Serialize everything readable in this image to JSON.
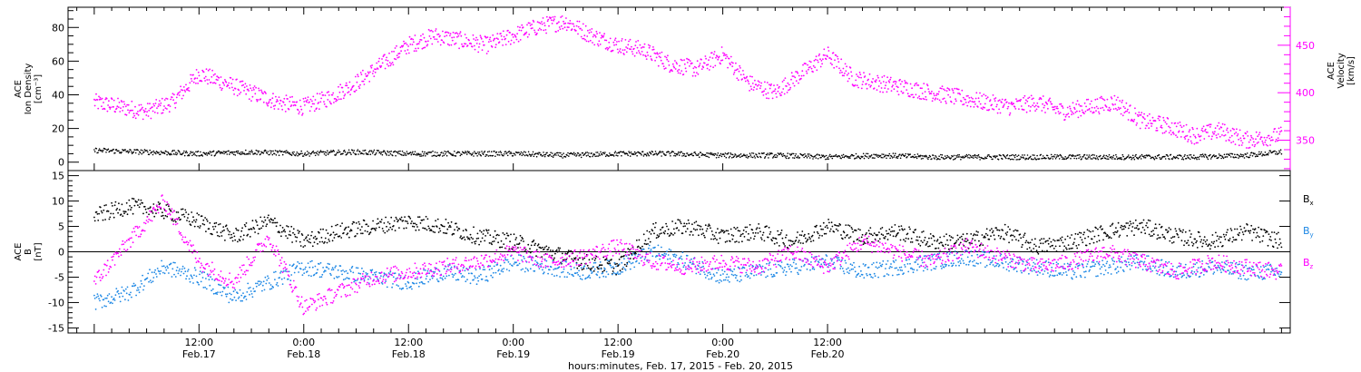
{
  "chart_data": [
    {
      "type": "scatter",
      "panel": "plasma",
      "ylabel_left_lines": [
        "ACE",
        "Ion Density",
        "[cm⁻³]"
      ],
      "ylabel_right_lines": [
        "ACE",
        "Velocity",
        "[km/s]"
      ],
      "ylim_left": [
        -5,
        92
      ],
      "ylim_right": [
        318,
        490
      ],
      "left_ticks": [
        0,
        20,
        40,
        60,
        80
      ],
      "right_ticks": [
        350,
        400,
        450
      ],
      "colors": {
        "density": "#000000",
        "velocity": "#ff00ff"
      },
      "series": [
        {
          "axis": "left",
          "color": "#000000",
          "t": [
            0,
            6,
            12,
            18,
            24,
            30,
            36,
            42,
            48,
            54,
            60,
            66,
            72,
            78,
            84,
            90,
            96,
            102,
            108,
            114,
            120,
            126,
            132,
            136
          ],
          "values": [
            7,
            6,
            5,
            6,
            5,
            6,
            5,
            5,
            5,
            4,
            5,
            5,
            4,
            4,
            3,
            4,
            3,
            3,
            3,
            3,
            3,
            3,
            4,
            6
          ]
        },
        {
          "axis": "right",
          "color": "#ff00ff",
          "t": [
            0,
            3,
            6,
            9,
            12,
            15,
            18,
            21,
            24,
            27,
            30,
            33,
            36,
            39,
            42,
            45,
            48,
            51,
            54,
            57,
            60,
            63,
            66,
            69,
            72,
            75,
            78,
            81,
            84,
            87,
            90,
            93,
            96,
            99,
            102,
            105,
            108,
            111,
            114,
            117,
            120,
            123,
            126,
            129,
            132,
            136
          ],
          "values": [
            390,
            385,
            380,
            390,
            420,
            410,
            400,
            390,
            385,
            395,
            410,
            430,
            450,
            460,
            455,
            450,
            460,
            470,
            475,
            460,
            450,
            445,
            430,
            425,
            440,
            410,
            400,
            420,
            440,
            415,
            410,
            405,
            400,
            395,
            390,
            385,
            390,
            380,
            385,
            390,
            370,
            365,
            355,
            360,
            350,
            355
          ]
        }
      ]
    },
    {
      "type": "scatter",
      "panel": "magnetic-field",
      "ylabel_left_lines": [
        "ACE",
        "B",
        "[nT]"
      ],
      "ylim": [
        -16,
        16
      ],
      "ticks": [
        -15,
        -10,
        -5,
        0,
        5,
        10,
        15
      ],
      "zero_line": true,
      "series": [
        {
          "name": "Bx",
          "label": "B",
          "sub": "x",
          "color": "#000000",
          "t": [
            0,
            4,
            8,
            12,
            16,
            20,
            24,
            28,
            32,
            36,
            40,
            44,
            48,
            52,
            56,
            60,
            64,
            68,
            72,
            76,
            80,
            84,
            88,
            92,
            96,
            100,
            104,
            108,
            112,
            116,
            120,
            124,
            128,
            132,
            136
          ],
          "values": [
            7,
            9,
            8,
            6,
            3,
            6,
            2,
            4,
            5,
            6,
            5,
            3,
            2,
            0,
            -2,
            -3,
            4,
            5,
            3,
            4,
            2,
            5,
            3,
            4,
            2,
            2,
            4,
            1,
            2,
            4,
            5,
            3,
            2,
            4,
            2
          ]
        },
        {
          "name": "By",
          "label": "B",
          "sub": "y",
          "color": "#1e88e5",
          "t": [
            0,
            4,
            8,
            12,
            16,
            20,
            24,
            28,
            32,
            36,
            40,
            44,
            48,
            52,
            56,
            60,
            64,
            68,
            72,
            76,
            80,
            84,
            88,
            92,
            96,
            100,
            104,
            108,
            112,
            116,
            120,
            124,
            128,
            132,
            136
          ],
          "values": [
            -10,
            -8,
            -3,
            -5,
            -9,
            -6,
            -3,
            -4,
            -5,
            -6,
            -4,
            -5,
            -2,
            -3,
            -4,
            -3,
            0,
            -2,
            -5,
            -4,
            -3,
            -2,
            -4,
            -3,
            -2,
            -1,
            -2,
            -3,
            -4,
            -3,
            -2,
            -4,
            -3,
            -4,
            -4
          ]
        },
        {
          "name": "Bz",
          "label": "B",
          "sub": "z",
          "color": "#ff00ff",
          "t": [
            0,
            4,
            8,
            12,
            16,
            20,
            24,
            28,
            32,
            36,
            40,
            44,
            48,
            52,
            56,
            60,
            64,
            68,
            72,
            76,
            80,
            84,
            88,
            92,
            96,
            100,
            104,
            108,
            112,
            116,
            120,
            124,
            128,
            132,
            136
          ],
          "values": [
            -6,
            2,
            10,
            -2,
            -6,
            3,
            -11,
            -8,
            -5,
            -4,
            -3,
            -2,
            0,
            -2,
            -1,
            1,
            -2,
            -3,
            -2,
            -3,
            0,
            -3,
            2,
            0,
            -2,
            1,
            -1,
            -3,
            -2,
            0,
            -2,
            -4,
            -2,
            -3,
            -4
          ]
        }
      ]
    }
  ],
  "x_axis": {
    "range_hours": [
      -3,
      137
    ],
    "major_ticks": [
      {
        "t": 0,
        "time": "",
        "date": ""
      },
      {
        "t": 12,
        "time": "12:00",
        "date": "Feb.17"
      },
      {
        "t": 24,
        "time": "0:00",
        "date": "Feb.18"
      },
      {
        "t": 36,
        "time": "12:00",
        "date": "Feb.18"
      },
      {
        "t": 48,
        "time": "0:00",
        "date": "Feb.19"
      },
      {
        "t": 60,
        "time": "12:00",
        "date": "Feb.19"
      },
      {
        "t": 72,
        "time": "0:00",
        "date": "Feb.20"
      },
      {
        "t": 84,
        "time": "12:00",
        "date": "Feb.20"
      }
    ],
    "xlabel": "hours:minutes, Feb. 17, 2015 - Feb. 20, 2015"
  }
}
